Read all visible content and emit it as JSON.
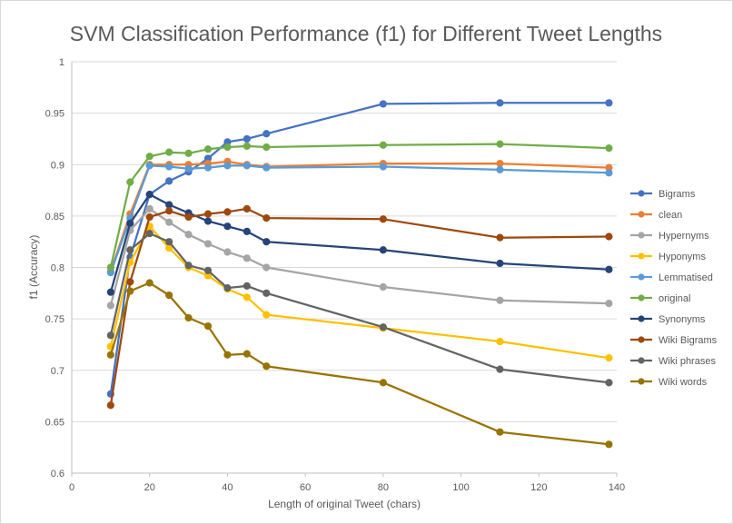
{
  "chart_data": {
    "type": "line",
    "title": "SVM Classification Performance (f1) for Different Tweet Lengths",
    "xlabel": "Length of original Tweet (chars)",
    "ylabel": "f1 (Accuracy)",
    "xlim": [
      0,
      140
    ],
    "ylim": [
      0.6,
      1
    ],
    "x_ticks": [
      0,
      20,
      40,
      60,
      80,
      100,
      120,
      140
    ],
    "y_ticks": [
      0.6,
      0.65,
      0.7,
      0.75,
      0.8,
      0.85,
      0.9,
      0.95,
      1
    ],
    "x_tick_labels": [
      "0",
      "20",
      "40",
      "60",
      "80",
      "100",
      "120",
      "140"
    ],
    "y_tick_labels": [
      "0.6",
      "0.65",
      "0.7",
      "0.75",
      "0.8",
      "0.85",
      "0.9",
      "0.95",
      "1"
    ],
    "grid": "horizontal",
    "legend_position": "right",
    "x": [
      10,
      15,
      20,
      25,
      30,
      35,
      40,
      45,
      50,
      80,
      110,
      138
    ],
    "series": [
      {
        "name": "Bigrams",
        "color": "#4472C4",
        "values": [
          0.677,
          0.81,
          0.871,
          0.884,
          0.893,
          0.906,
          0.922,
          0.925,
          0.93,
          0.959,
          0.96,
          0.96
        ]
      },
      {
        "name": "clean",
        "color": "#ED7D31",
        "values": [
          0.796,
          0.852,
          0.9,
          0.9,
          0.9,
          0.901,
          0.903,
          0.9,
          0.898,
          0.901,
          0.901,
          0.897
        ]
      },
      {
        "name": "Hypernyms",
        "color": "#A5A5A5",
        "values": [
          0.763,
          0.836,
          0.857,
          0.844,
          0.832,
          0.823,
          0.815,
          0.809,
          0.8,
          0.781,
          0.768,
          0.765
        ]
      },
      {
        "name": "Hyponyms",
        "color": "#FFC000",
        "values": [
          0.723,
          0.805,
          0.84,
          0.819,
          0.8,
          0.792,
          0.779,
          0.771,
          0.754,
          0.741,
          0.728,
          0.712
        ]
      },
      {
        "name": "Lemmatised",
        "color": "#5B9BD5",
        "values": [
          0.795,
          0.848,
          0.899,
          0.898,
          0.896,
          0.897,
          0.899,
          0.899,
          0.897,
          0.898,
          0.895,
          0.892
        ]
      },
      {
        "name": "original",
        "color": "#70AD47",
        "values": [
          0.8,
          0.883,
          0.908,
          0.912,
          0.911,
          0.915,
          0.917,
          0.918,
          0.917,
          0.919,
          0.92,
          0.916
        ]
      },
      {
        "name": "Synonyms",
        "color": "#264478",
        "values": [
          0.776,
          0.843,
          0.871,
          0.861,
          0.853,
          0.845,
          0.84,
          0.835,
          0.825,
          0.817,
          0.804,
          0.798
        ]
      },
      {
        "name": "Wiki Bigrams",
        "color": "#9E480E",
        "values": [
          0.666,
          0.786,
          0.849,
          0.855,
          0.849,
          0.852,
          0.854,
          0.857,
          0.848,
          0.847,
          0.829,
          0.83
        ]
      },
      {
        "name": "Wiki phrases",
        "color": "#636363",
        "values": [
          0.734,
          0.817,
          0.833,
          0.825,
          0.802,
          0.797,
          0.78,
          0.782,
          0.775,
          0.742,
          0.701,
          0.688
        ]
      },
      {
        "name": "Wiki words",
        "color": "#997300",
        "values": [
          0.715,
          0.777,
          0.785,
          0.773,
          0.751,
          0.743,
          0.715,
          0.716,
          0.704,
          0.688,
          0.64,
          0.628
        ]
      }
    ]
  }
}
